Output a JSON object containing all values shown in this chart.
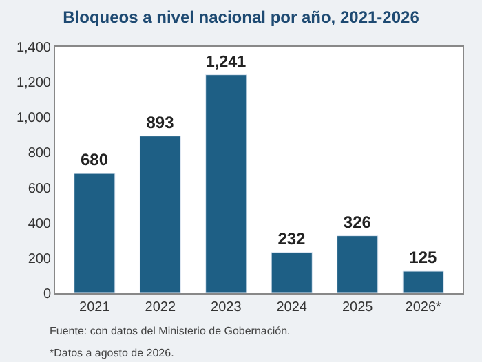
{
  "chart_data": {
    "type": "bar",
    "title": "Bloqueos a nivel nacional por año, 2021-2026",
    "categories": [
      "2021",
      "2022",
      "2023",
      "2024",
      "2025",
      "2026*"
    ],
    "values": [
      680,
      893,
      1241,
      232,
      326,
      125
    ],
    "color": "#1e5f85",
    "ylim": [
      0,
      1400
    ],
    "yticks": [
      0,
      {
        "value": 200,
        "label": "200"
      },
      {
        "value": 400,
        "label": "400"
      },
      {
        "value": 600,
        "label": "600"
      },
      {
        "value": 800,
        "label": "800"
      },
      {
        "value": 1000,
        "label": "1,000"
      },
      {
        "value": 1200,
        "label": "1,200"
      },
      {
        "value": 1400,
        "label": "1,400"
      }
    ],
    "legend": false,
    "value_labels": [
      "680",
      "893",
      "1,241",
      "232",
      "326",
      "125"
    ],
    "annotations": [
      "Fuente: con datos del Ministerio de Gobernación.",
      "*Datos a agosto de 2026."
    ]
  }
}
